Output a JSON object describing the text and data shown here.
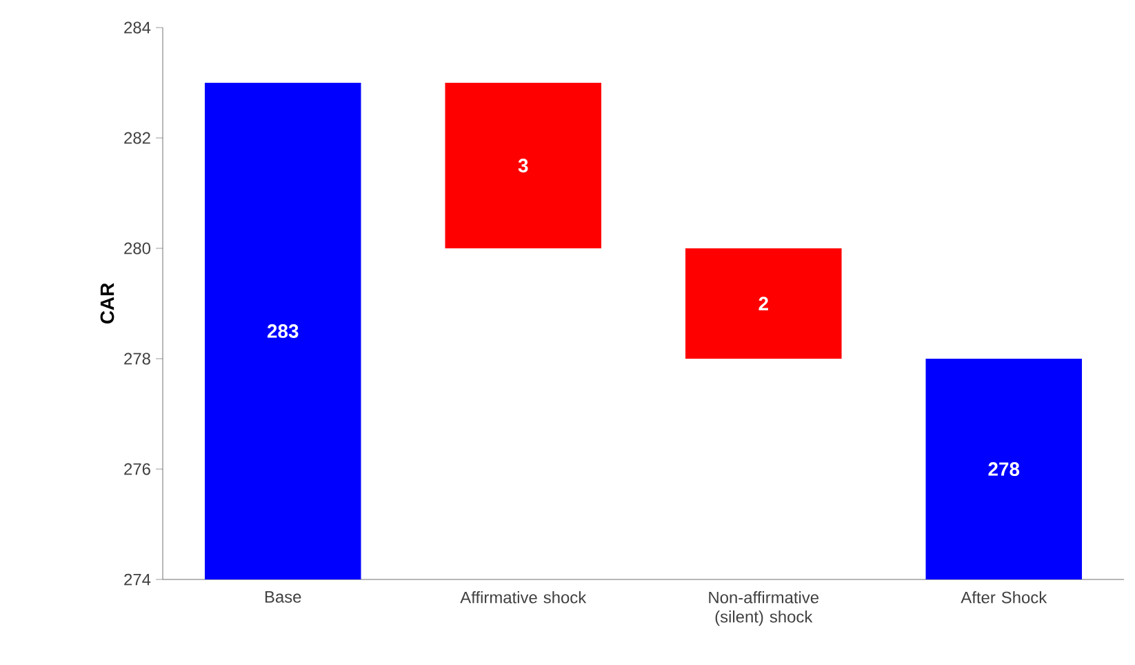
{
  "chart_data": {
    "type": "bar",
    "ylabel": "CAR",
    "categories": [
      "Base",
      "Affirmative shock",
      "Non-affirmative (silent) shock",
      "After Shock"
    ],
    "base": [
      274,
      280,
      278,
      274
    ],
    "values": [
      9,
      3,
      2,
      4
    ],
    "colors": [
      "#0000ff",
      "#ff0000",
      "#ff0000",
      "#0000ff"
    ],
    "value_labels": [
      "283",
      "3",
      "2",
      "278"
    ],
    "ylim": [
      274,
      284
    ],
    "yticks": [
      274,
      276,
      278,
      280,
      282,
      284
    ]
  }
}
